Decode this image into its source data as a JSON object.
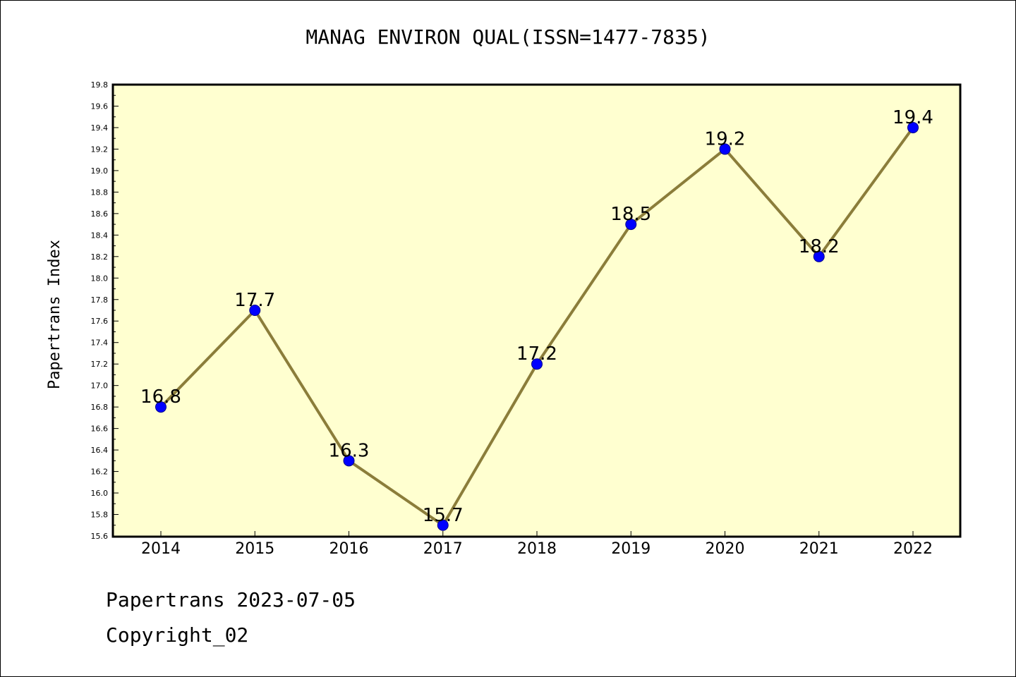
{
  "chart_data": {
    "type": "line",
    "title": "MANAG ENVIRON QUAL(ISSN=1477-7835)",
    "xlabel": "",
    "ylabel": "Papertrans Index",
    "x": [
      "2014",
      "2015",
      "2016",
      "2017",
      "2018",
      "2019",
      "2020",
      "2021",
      "2022"
    ],
    "values": [
      16.8,
      17.7,
      16.3,
      15.7,
      17.2,
      18.5,
      19.2,
      18.2,
      19.4
    ],
    "data_labels": [
      "16.8",
      "17.7",
      "16.3",
      "15.7",
      "17.2",
      "18.5",
      "19.2",
      "18.2",
      "19.4"
    ],
    "ylim": [
      15.6,
      19.8
    ],
    "yticks": [
      "15.6",
      "15.8",
      "16.0",
      "16.2",
      "16.4",
      "16.6",
      "16.8",
      "17.0",
      "17.2",
      "17.4",
      "17.6",
      "17.8",
      "18.0",
      "18.2",
      "18.4",
      "18.6",
      "18.8",
      "19.0",
      "19.2",
      "19.4",
      "19.6",
      "19.8"
    ],
    "grid": false,
    "colors": {
      "plot_background": "#ffffd0",
      "line": "#8b7d3a",
      "marker": "#0000ff",
      "marker_edge": "#00008b"
    }
  },
  "footer": {
    "line1": "Papertrans 2023-07-05",
    "line2": "Copyright_02"
  }
}
